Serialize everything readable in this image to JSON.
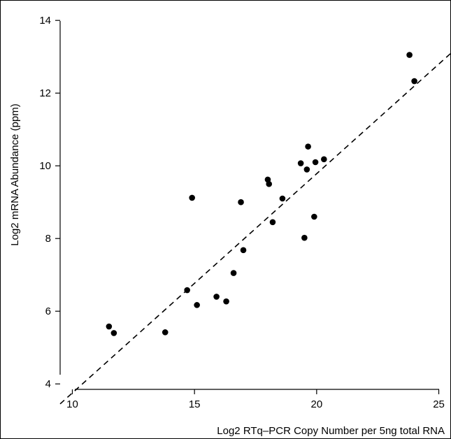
{
  "chart_data": {
    "type": "scatter",
    "title": "",
    "xlabel": "Log2 RTq–PCR Copy Number per 5ng total RNA",
    "ylabel": "Log2 mRNA Abundance (ppm)",
    "xlim": [
      9.5,
      25.5
    ],
    "ylim": [
      3.85,
      14.1
    ],
    "xticks": [
      10,
      15,
      20,
      25
    ],
    "yticks": [
      4,
      6,
      8,
      10,
      12,
      14
    ],
    "x_tick_labels": [
      "10",
      "15",
      "20",
      "25"
    ],
    "y_tick_labels": [
      "4",
      "6",
      "8",
      "10",
      "12",
      "14"
    ],
    "grid": false,
    "legend": "none",
    "fit_line": {
      "style": "dashed",
      "x": [
        9.5,
        25.5
      ],
      "y": [
        3.45,
        13.1
      ]
    },
    "points": [
      {
        "x": 11.5,
        "y": 5.58
      },
      {
        "x": 11.7,
        "y": 5.4
      },
      {
        "x": 13.8,
        "y": 5.42
      },
      {
        "x": 14.7,
        "y": 6.58
      },
      {
        "x": 14.9,
        "y": 9.12
      },
      {
        "x": 15.1,
        "y": 6.17
      },
      {
        "x": 15.9,
        "y": 6.4
      },
      {
        "x": 16.3,
        "y": 6.27
      },
      {
        "x": 16.6,
        "y": 7.05
      },
      {
        "x": 16.9,
        "y": 9.0
      },
      {
        "x": 17.0,
        "y": 7.68
      },
      {
        "x": 18.0,
        "y": 9.62
      },
      {
        "x": 18.05,
        "y": 9.5
      },
      {
        "x": 18.2,
        "y": 8.45
      },
      {
        "x": 18.6,
        "y": 9.1
      },
      {
        "x": 19.35,
        "y": 10.07
      },
      {
        "x": 19.5,
        "y": 8.02
      },
      {
        "x": 19.6,
        "y": 9.9
      },
      {
        "x": 19.65,
        "y": 10.53
      },
      {
        "x": 19.9,
        "y": 8.6
      },
      {
        "x": 19.95,
        "y": 10.1
      },
      {
        "x": 20.3,
        "y": 10.18
      },
      {
        "x": 23.8,
        "y": 13.05
      },
      {
        "x": 24.0,
        "y": 12.33
      }
    ],
    "marker_color": "#000000"
  }
}
